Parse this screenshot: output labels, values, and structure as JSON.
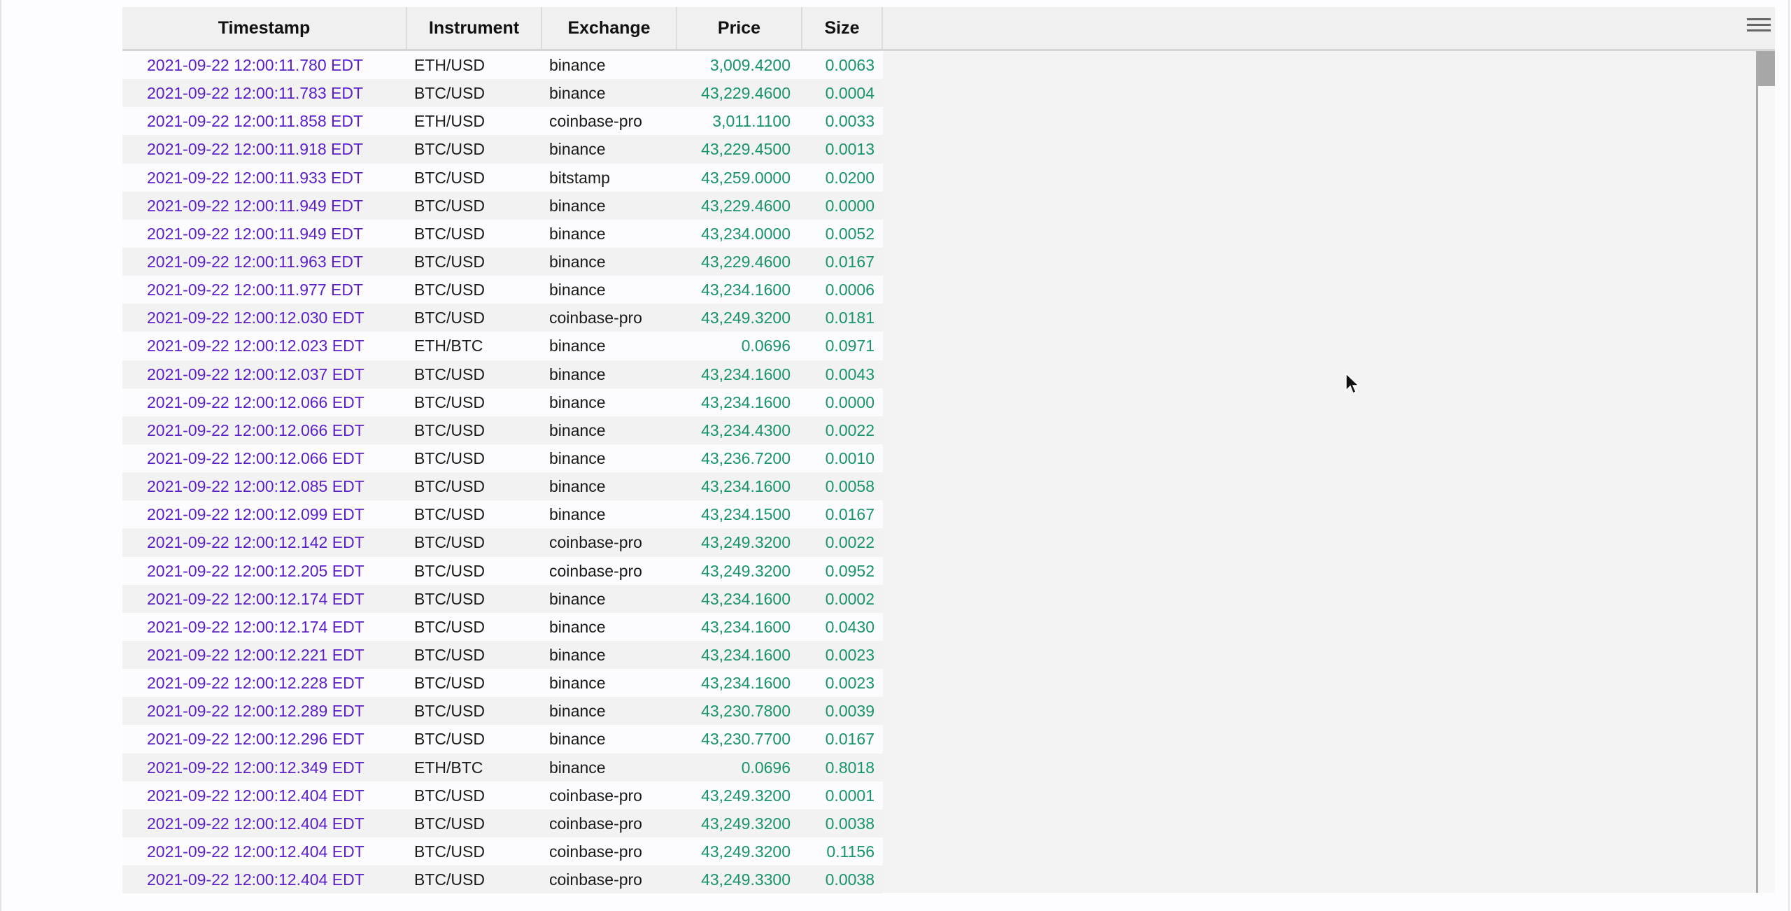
{
  "columns": [
    "Timestamp",
    "Instrument",
    "Exchange",
    "Price",
    "Size"
  ],
  "colors": {
    "timestamp": "#5a1fc9",
    "number": "#17946a"
  },
  "icons": {
    "menu": "hamburger-menu-icon",
    "cursor": "mouse-pointer-icon"
  },
  "rows": [
    [
      "2021-09-22 12:00:11.780 EDT",
      "ETH/USD",
      "binance",
      "3,009.4200",
      "0.0063"
    ],
    [
      "2021-09-22 12:00:11.783 EDT",
      "BTC/USD",
      "binance",
      "43,229.4600",
      "0.0004"
    ],
    [
      "2021-09-22 12:00:11.858 EDT",
      "ETH/USD",
      "coinbase-pro",
      "3,011.1100",
      "0.0033"
    ],
    [
      "2021-09-22 12:00:11.918 EDT",
      "BTC/USD",
      "binance",
      "43,229.4500",
      "0.0013"
    ],
    [
      "2021-09-22 12:00:11.933 EDT",
      "BTC/USD",
      "bitstamp",
      "43,259.0000",
      "0.0200"
    ],
    [
      "2021-09-22 12:00:11.949 EDT",
      "BTC/USD",
      "binance",
      "43,229.4600",
      "0.0000"
    ],
    [
      "2021-09-22 12:00:11.949 EDT",
      "BTC/USD",
      "binance",
      "43,234.0000",
      "0.0052"
    ],
    [
      "2021-09-22 12:00:11.963 EDT",
      "BTC/USD",
      "binance",
      "43,229.4600",
      "0.0167"
    ],
    [
      "2021-09-22 12:00:11.977 EDT",
      "BTC/USD",
      "binance",
      "43,234.1600",
      "0.0006"
    ],
    [
      "2021-09-22 12:00:12.030 EDT",
      "BTC/USD",
      "coinbase-pro",
      "43,249.3200",
      "0.0181"
    ],
    [
      "2021-09-22 12:00:12.023 EDT",
      "ETH/BTC",
      "binance",
      "0.0696",
      "0.0971"
    ],
    [
      "2021-09-22 12:00:12.037 EDT",
      "BTC/USD",
      "binance",
      "43,234.1600",
      "0.0043"
    ],
    [
      "2021-09-22 12:00:12.066 EDT",
      "BTC/USD",
      "binance",
      "43,234.1600",
      "0.0000"
    ],
    [
      "2021-09-22 12:00:12.066 EDT",
      "BTC/USD",
      "binance",
      "43,234.4300",
      "0.0022"
    ],
    [
      "2021-09-22 12:00:12.066 EDT",
      "BTC/USD",
      "binance",
      "43,236.7200",
      "0.0010"
    ],
    [
      "2021-09-22 12:00:12.085 EDT",
      "BTC/USD",
      "binance",
      "43,234.1600",
      "0.0058"
    ],
    [
      "2021-09-22 12:00:12.099 EDT",
      "BTC/USD",
      "binance",
      "43,234.1500",
      "0.0167"
    ],
    [
      "2021-09-22 12:00:12.142 EDT",
      "BTC/USD",
      "coinbase-pro",
      "43,249.3200",
      "0.0022"
    ],
    [
      "2021-09-22 12:00:12.205 EDT",
      "BTC/USD",
      "coinbase-pro",
      "43,249.3200",
      "0.0952"
    ],
    [
      "2021-09-22 12:00:12.174 EDT",
      "BTC/USD",
      "binance",
      "43,234.1600",
      "0.0002"
    ],
    [
      "2021-09-22 12:00:12.174 EDT",
      "BTC/USD",
      "binance",
      "43,234.1600",
      "0.0430"
    ],
    [
      "2021-09-22 12:00:12.221 EDT",
      "BTC/USD",
      "binance",
      "43,234.1600",
      "0.0023"
    ],
    [
      "2021-09-22 12:00:12.228 EDT",
      "BTC/USD",
      "binance",
      "43,234.1600",
      "0.0023"
    ],
    [
      "2021-09-22 12:00:12.289 EDT",
      "BTC/USD",
      "binance",
      "43,230.7800",
      "0.0039"
    ],
    [
      "2021-09-22 12:00:12.296 EDT",
      "BTC/USD",
      "binance",
      "43,230.7700",
      "0.0167"
    ],
    [
      "2021-09-22 12:00:12.349 EDT",
      "ETH/BTC",
      "binance",
      "0.0696",
      "0.8018"
    ],
    [
      "2021-09-22 12:00:12.404 EDT",
      "BTC/USD",
      "coinbase-pro",
      "43,249.3200",
      "0.0001"
    ],
    [
      "2021-09-22 12:00:12.404 EDT",
      "BTC/USD",
      "coinbase-pro",
      "43,249.3200",
      "0.0038"
    ],
    [
      "2021-09-22 12:00:12.404 EDT",
      "BTC/USD",
      "coinbase-pro",
      "43,249.3200",
      "0.1156"
    ],
    [
      "2021-09-22 12:00:12.404 EDT",
      "BTC/USD",
      "coinbase-pro",
      "43,249.3300",
      "0.0038"
    ]
  ]
}
